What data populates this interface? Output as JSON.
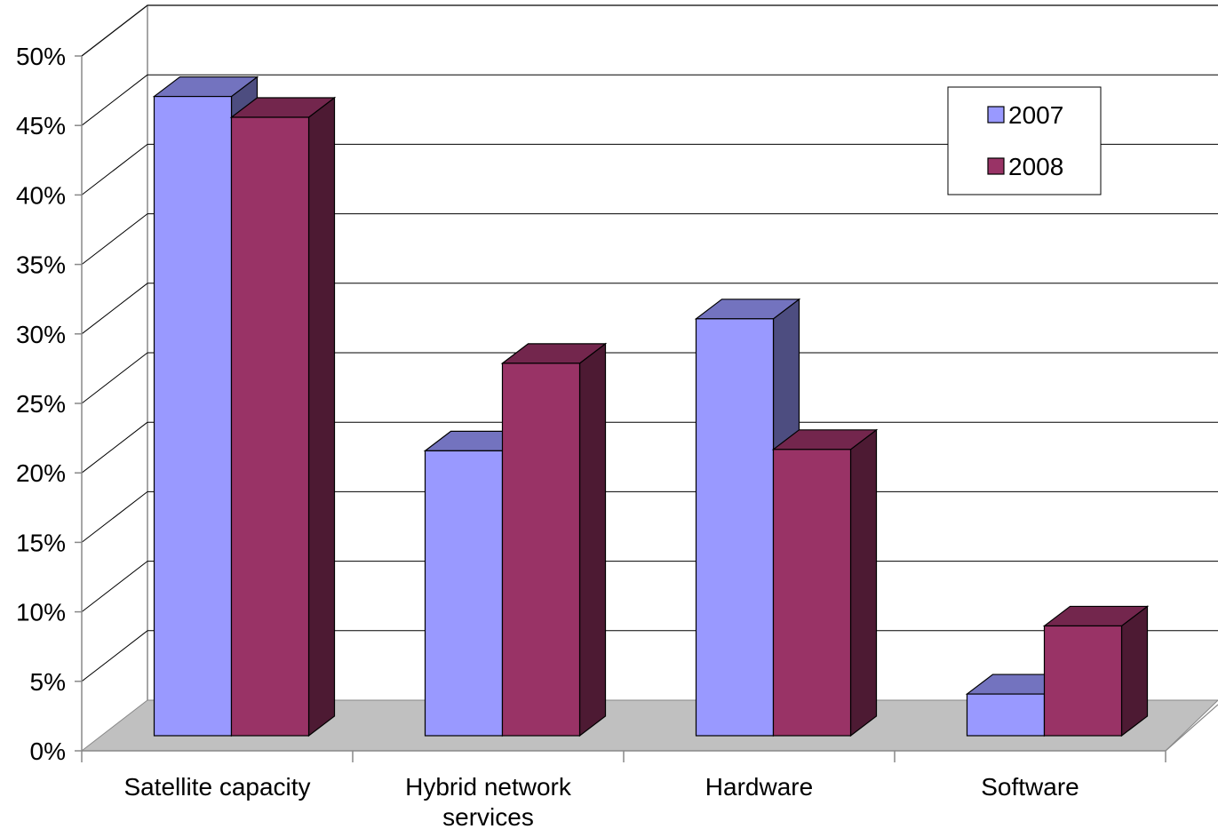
{
  "chart_data": {
    "type": "bar",
    "style": "3d-clustered-column",
    "title": "",
    "xlabel": "",
    "ylabel": "",
    "categories": [
      "Satellite capacity",
      "Hybrid network services",
      "Hardware",
      "Software"
    ],
    "category_lines": [
      [
        "Satellite capacity"
      ],
      [
        "Hybrid network",
        "services"
      ],
      [
        "Hardware"
      ],
      [
        "Software"
      ]
    ],
    "series": [
      {
        "name": "2007",
        "values": [
          46,
          20.5,
          30,
          3
        ],
        "color": "#9999FF",
        "side_color": "#4D4D80",
        "top_color": "#7373BF"
      },
      {
        "name": "2008",
        "values": [
          44.5,
          26.8,
          20.6,
          7.9
        ],
        "color": "#993366",
        "side_color": "#4D1A33",
        "top_color": "#73264D"
      }
    ],
    "ylim": [
      0,
      50
    ],
    "yticks": [
      0,
      5,
      10,
      15,
      20,
      25,
      30,
      35,
      40,
      45,
      50
    ],
    "ytick_labels": [
      "0%",
      "5%",
      "10%",
      "15%",
      "20%",
      "25%",
      "30%",
      "35%",
      "40%",
      "45%",
      "50%"
    ],
    "grid": true,
    "legend_position": "top-right",
    "floor_color": "#C0C0C0"
  }
}
